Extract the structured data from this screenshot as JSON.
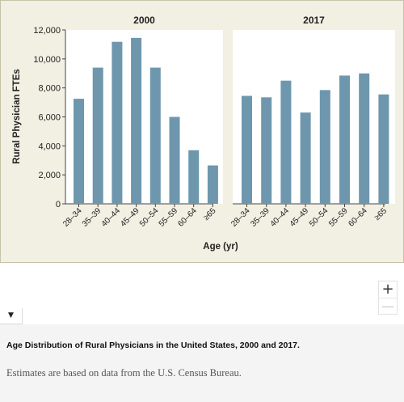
{
  "chart_data": {
    "type": "bar",
    "ylabel": "Rural Physician FTEs",
    "xlabel": "Age (yr)",
    "ylim": [
      0,
      12000
    ],
    "yticks": [
      0,
      2000,
      4000,
      6000,
      8000,
      10000,
      12000
    ],
    "ytick_labels": [
      "0",
      "2,000",
      "4,000",
      "6,000",
      "8,000",
      "10,000",
      "12,000"
    ],
    "grid": false,
    "bar_color": "#6e97ad",
    "panels": [
      {
        "title": "2000",
        "categories": [
          "28–34",
          "35–39",
          "40–44",
          "45–49",
          "50–54",
          "55–59",
          "60–64",
          "≥65"
        ],
        "values": [
          7250,
          9400,
          11180,
          11450,
          9400,
          6000,
          3700,
          2650
        ]
      },
      {
        "title": "2017",
        "categories": [
          "28–34",
          "35–39",
          "40–44",
          "45–49",
          "50–54",
          "55–59",
          "60–64",
          "≥65"
        ],
        "values": [
          7450,
          7350,
          8500,
          6300,
          7850,
          8850,
          9000,
          7550
        ]
      }
    ]
  },
  "controls": {
    "zoom_in": "+",
    "zoom_out": "—",
    "collapse": "▼"
  },
  "caption": {
    "title": "Age Distribution of Rural Physicians in the United States, 2000 and 2017.",
    "note": "Estimates are based on data from the U.S. Census Bureau."
  }
}
